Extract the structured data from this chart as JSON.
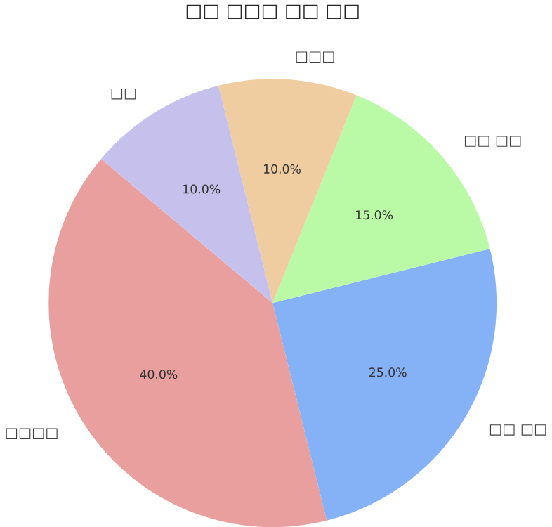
{
  "chart_data": {
    "type": "pie",
    "title": "□□ □□□ □□ □□",
    "categories": [
      "□□□□",
      "□□ □□",
      "□□ □□",
      "□□□",
      "□□"
    ],
    "values": [
      40,
      25,
      15,
      10,
      10
    ],
    "value_labels": [
      "40.0%",
      "25.0%",
      "15.0%",
      "10.0%",
      "10.0%"
    ],
    "colors": [
      "#e89f9d",
      "#85b1f7",
      "#bafaa6",
      "#efcda0",
      "#c6c1ec"
    ]
  }
}
